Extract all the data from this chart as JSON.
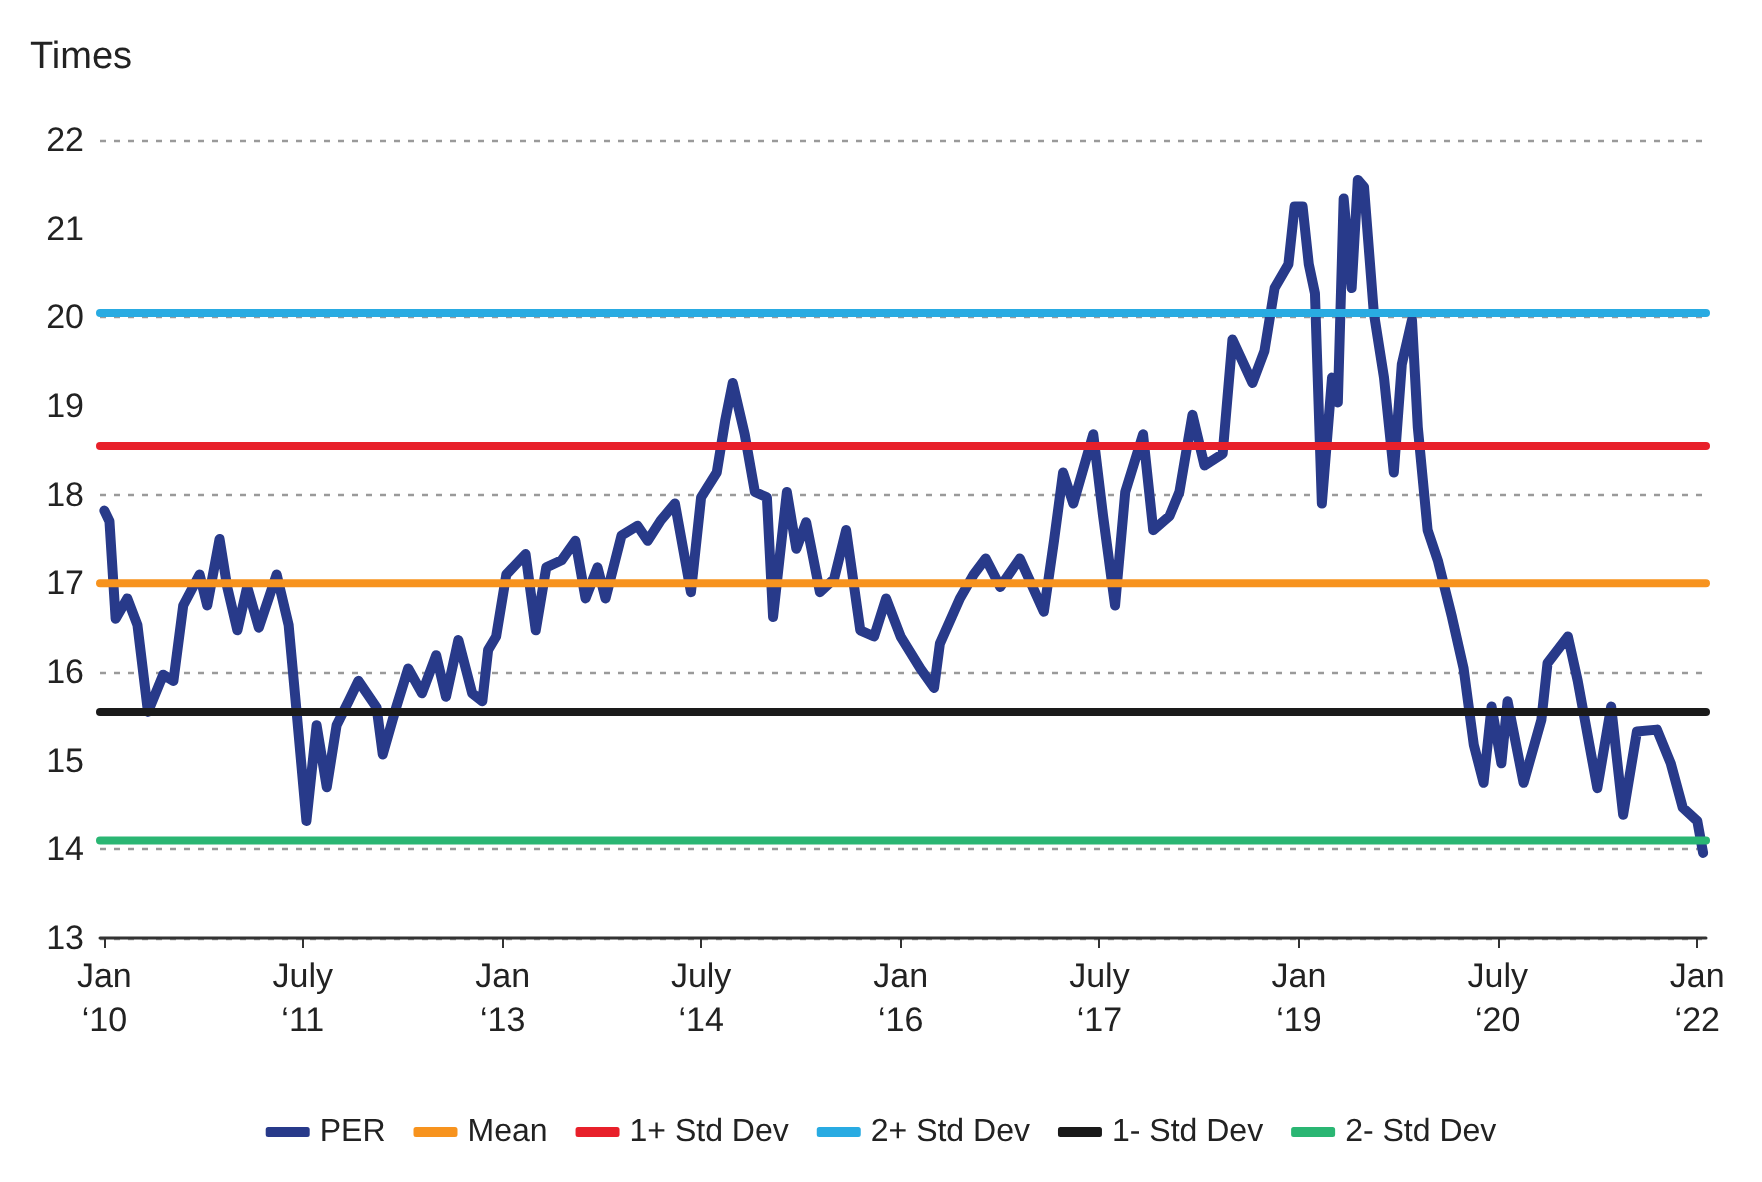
{
  "chart_data": {
    "type": "line",
    "ylabel": "Times",
    "xlim": [
      "2009-12-20",
      "2022-01-25"
    ],
    "xticks": [
      {
        "value": "2010-01-01",
        "label": "Jan\n‘10"
      },
      {
        "value": "2011-07-01",
        "label": "July\n‘11"
      },
      {
        "value": "2013-01-01",
        "label": "Jan\n‘13"
      },
      {
        "value": "2014-07-01",
        "label": "July\n‘14"
      },
      {
        "value": "2016-01-01",
        "label": "Jan\n‘16"
      },
      {
        "value": "2017-07-01",
        "label": "July\n‘17"
      },
      {
        "value": "2019-01-01",
        "label": "Jan\n‘19"
      },
      {
        "value": "2020-07-01",
        "label": "July\n‘20"
      },
      {
        "value": "2022-01-01",
        "label": "Jan\n‘22"
      }
    ],
    "ylim": [
      13,
      22
    ],
    "yticks": [
      13,
      14,
      15,
      16,
      17,
      18,
      19,
      20,
      21,
      22
    ],
    "grid": "y",
    "legend": "bottom",
    "marker": "none",
    "line_style": "solid",
    "series": [
      {
        "name": "PER",
        "color": "#283a8a",
        "x": [
          "2010-01-01",
          "2010-01-15",
          "2010-02-01",
          "2010-03-05",
          "2010-04-02",
          "2010-05-01",
          "2010-06-12",
          "2010-07-10",
          "2010-08-06",
          "2010-09-20",
          "2010-10-11",
          "2010-11-14",
          "2010-12-05",
          "2011-01-02",
          "2011-01-29",
          "2011-03-02",
          "2011-04-20",
          "2011-05-23",
          "2011-06-14",
          "2011-07-11",
          "2011-08-08",
          "2011-09-05",
          "2011-10-02",
          "2011-11-04",
          "2011-12-01",
          "2012-01-20",
          "2012-02-06",
          "2012-03-14",
          "2012-04-16",
          "2012-05-24",
          "2012-07-02",
          "2012-07-29",
          "2012-09-01",
          "2012-10-09",
          "2012-11-06",
          "2012-11-22",
          "2012-12-14",
          "2013-01-11",
          "2013-03-05",
          "2013-04-02",
          "2013-05-01",
          "2013-06-12",
          "2013-07-20",
          "2013-08-17",
          "2013-09-19",
          "2013-10-11",
          "2013-11-24",
          "2014-01-07",
          "2014-02-04",
          "2014-03-12",
          "2014-04-20",
          "2014-06-03",
          "2014-07-01",
          "2014-08-13",
          "2014-09-05",
          "2014-09-26",
          "2014-10-29",
          "2014-11-26",
          "2014-12-29",
          "2015-01-15",
          "2015-02-22",
          "2015-03-20",
          "2015-04-16",
          "2015-05-24",
          "2015-07-02",
          "2015-08-04",
          "2015-09-12",
          "2015-10-20",
          "2015-11-22",
          "2016-01-01",
          "2016-02-24",
          "2016-04-02",
          "2016-04-18",
          "2016-06-12",
          "2016-07-20",
          "2016-08-22",
          "2016-10-01",
          "2016-11-24",
          "2017-01-29",
          "2017-02-26",
          "2017-03-23",
          "2017-04-20",
          "2017-06-14",
          "2017-07-11",
          "2017-08-13",
          "2017-09-10",
          "2017-10-29",
          "2017-11-26",
          "2018-01-10",
          "2018-02-06",
          "2018-03-14",
          "2018-04-16",
          "2018-06-05",
          "2018-07-02",
          "2018-08-26",
          "2018-09-28",
          "2018-10-26",
          "2018-12-03",
          "2018-12-20",
          "2019-01-11",
          "2019-01-28",
          "2019-02-14",
          "2019-03-05",
          "2019-04-02",
          "2019-04-18",
          "2019-05-04",
          "2019-05-26",
          "2019-06-12",
          "2019-06-29",
          "2019-07-26",
          "2019-08-23",
          "2019-09-19",
          "2019-10-11",
          "2019-11-08",
          "2019-11-24",
          "2019-12-21",
          "2020-01-18",
          "2020-02-26",
          "2020-03-29",
          "2020-04-26",
          "2020-05-23",
          "2020-06-14",
          "2020-07-11",
          "2020-07-28",
          "2020-09-10",
          "2020-10-29",
          "2020-11-15",
          "2021-01-10",
          "2021-02-06",
          "2021-04-01",
          "2021-05-09",
          "2021-06-11",
          "2021-07-19",
          "2021-09-12",
          "2021-10-20",
          "2021-11-22",
          "2022-01-01",
          "2022-01-17"
        ],
        "values": [
          17.82,
          17.7,
          16.6,
          16.83,
          16.53,
          15.55,
          15.97,
          15.9,
          16.75,
          17.1,
          16.75,
          17.5,
          16.96,
          16.47,
          16.96,
          16.5,
          17.1,
          16.53,
          15.55,
          14.32,
          15.4,
          14.7,
          15.4,
          15.67,
          15.9,
          15.6,
          15.07,
          15.6,
          16.04,
          15.76,
          16.19,
          15.72,
          16.36,
          15.76,
          15.67,
          16.25,
          16.4,
          17.1,
          17.33,
          16.47,
          17.18,
          17.26,
          17.48,
          16.83,
          17.18,
          16.83,
          17.54,
          17.65,
          17.48,
          17.71,
          17.9,
          16.9,
          17.97,
          18.25,
          18.83,
          19.26,
          18.68,
          18.03,
          17.97,
          16.62,
          18.03,
          17.39,
          17.69,
          16.9,
          17.05,
          17.6,
          16.47,
          16.4,
          16.83,
          16.4,
          16.04,
          15.82,
          16.32,
          16.83,
          17.1,
          17.28,
          16.96,
          17.28,
          16.68,
          17.48,
          18.25,
          17.9,
          18.68,
          17.76,
          16.75,
          18.03,
          18.68,
          17.6,
          17.76,
          18.03,
          18.9,
          18.33,
          18.46,
          19.75,
          19.26,
          19.62,
          20.33,
          20.6,
          21.25,
          21.25,
          20.6,
          20.27,
          17.9,
          19.32,
          19.04,
          21.34,
          20.33,
          21.55,
          21.47,
          20.05,
          19.32,
          18.25,
          19.47,
          19.97,
          18.76,
          17.6,
          17.26,
          16.62,
          16.04,
          15.18,
          14.75,
          15.61,
          14.97,
          15.67,
          14.75,
          15.46,
          16.1,
          16.4,
          15.9,
          14.69,
          15.61,
          14.39,
          15.33,
          15.35,
          14.97,
          14.47,
          14.32,
          13.96
        ]
      }
    ],
    "ref_lines": [
      {
        "axis": "y",
        "value": 17.0,
        "label": "Mean",
        "color": "#f7931e",
        "line_style": "solid"
      },
      {
        "axis": "y",
        "value": 18.55,
        "label": "1+ Std Dev",
        "color": "#e8202a",
        "line_style": "solid"
      },
      {
        "axis": "y",
        "value": 20.05,
        "label": "2+ Std Dev",
        "color": "#29abe2",
        "line_style": "solid"
      },
      {
        "axis": "y",
        "value": 15.55,
        "label": "1- Std Dev",
        "color": "#1a1a1a",
        "line_style": "solid"
      },
      {
        "axis": "y",
        "value": 14.1,
        "label": "2- Std Dev",
        "color": "#2ab673",
        "line_style": "solid"
      }
    ]
  }
}
